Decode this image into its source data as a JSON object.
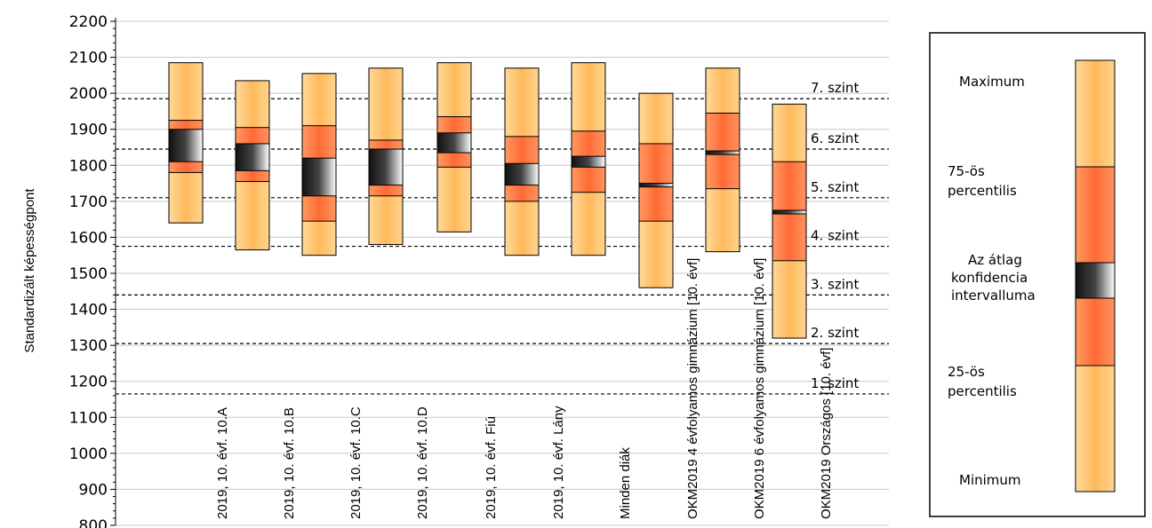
{
  "chart_data": {
    "type": "boxplot",
    "ylabel": "Standardizált képességpont",
    "ylim": [
      800,
      2200
    ],
    "yticks": [
      800,
      900,
      1000,
      1100,
      1200,
      1300,
      1400,
      1500,
      1600,
      1700,
      1800,
      1900,
      2000,
      2100,
      2200
    ],
    "grid": true,
    "categories": [
      "2019, 10. évf. 10.A",
      "2019, 10. évf. 10.B",
      "2019, 10. évf. 10.C",
      "2019, 10. évf. 10.D",
      "2019, 10. évf. Fiú",
      "2019, 10. évf. Lány",
      "Minden diák",
      "OKM2019 4 évfolyamos gimnázium [10. évf]",
      "OKM2019 6 évfolyamos gimnázium [10. évf]",
      "OKM2019 Országos [10. évf]"
    ],
    "boxes": [
      {
        "min": 1640,
        "p25": 1780,
        "ci_low": 1810,
        "ci_high": 1900,
        "p75": 1925,
        "max": 2085
      },
      {
        "min": 1565,
        "p25": 1755,
        "ci_low": 1785,
        "ci_high": 1860,
        "p75": 1905,
        "max": 2035
      },
      {
        "min": 1550,
        "p25": 1645,
        "ci_low": 1715,
        "ci_high": 1820,
        "p75": 1910,
        "max": 2055
      },
      {
        "min": 1580,
        "p25": 1715,
        "ci_low": 1745,
        "ci_high": 1845,
        "p75": 1870,
        "max": 2070
      },
      {
        "min": 1615,
        "p25": 1795,
        "ci_low": 1835,
        "ci_high": 1890,
        "p75": 1935,
        "max": 2085
      },
      {
        "min": 1550,
        "p25": 1700,
        "ci_low": 1745,
        "ci_high": 1805,
        "p75": 1880,
        "max": 2070
      },
      {
        "min": 1550,
        "p25": 1725,
        "ci_low": 1795,
        "ci_high": 1825,
        "p75": 1895,
        "max": 2085
      },
      {
        "min": 1460,
        "p25": 1645,
        "ci_low": 1740,
        "ci_high": 1750,
        "p75": 1860,
        "max": 2000
      },
      {
        "min": 1560,
        "p25": 1735,
        "ci_low": 1830,
        "ci_high": 1840,
        "p75": 1945,
        "max": 2070
      },
      {
        "min": 1320,
        "p25": 1535,
        "ci_low": 1665,
        "ci_high": 1675,
        "p75": 1810,
        "max": 1970
      }
    ],
    "levels": [
      {
        "label": "7. szint",
        "value": 1985
      },
      {
        "label": "6. szint",
        "value": 1845
      },
      {
        "label": "5. szint",
        "value": 1710
      },
      {
        "label": "4. szint",
        "value": 1575
      },
      {
        "label": "3. szint",
        "value": 1440
      },
      {
        "label": "2. szint",
        "value": 1305
      },
      {
        "label": "1. szint",
        "value": 1165
      }
    ],
    "legend": {
      "position": "right",
      "items": [
        {
          "key": "max",
          "label": "Maximum"
        },
        {
          "key": "p75",
          "label": "75-ös percentilis"
        },
        {
          "key": "ci",
          "label": "Az átlag konfidencia intervalluma"
        },
        {
          "key": "p25",
          "label": "25-ös percentilis"
        },
        {
          "key": "min",
          "label": "Minimum"
        }
      ]
    },
    "colors": {
      "outer": "#ffc56e",
      "inner": "#ff7f42",
      "ci_dark": "#1a1a1a",
      "ci_light": "#ffffff",
      "grid": "#c8c8c8"
    }
  }
}
